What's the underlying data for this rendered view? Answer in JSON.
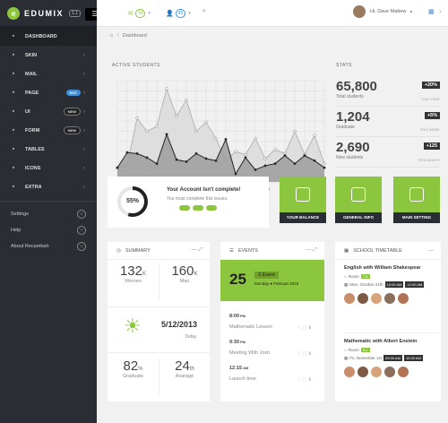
{
  "brand": {
    "name": "EDUMIX",
    "version": "1.1",
    "accent": "#8cc63f",
    "dark": "#2a2d33"
  },
  "sidebar": {
    "items": [
      {
        "label": "DASHBOARD",
        "icon": "monitor-icon",
        "badge": null
      },
      {
        "label": "SKIN",
        "icon": "eye-icon",
        "badge": null
      },
      {
        "label": "MAIL",
        "icon": "mail-icon",
        "badge": null
      },
      {
        "label": "PAGE",
        "icon": "file-icon",
        "badge": "HOT"
      },
      {
        "label": "UI",
        "icon": "code-icon",
        "badge": "NEW"
      },
      {
        "label": "FORM",
        "icon": "pencil-icon",
        "badge": "NEW"
      },
      {
        "label": "TABLES",
        "icon": "table-icon",
        "badge": null
      },
      {
        "label": "ICONS",
        "icon": "grid-icon",
        "badge": null
      },
      {
        "label": "EXTRA",
        "icon": "rocket-icon",
        "badge": null
      }
    ],
    "utility": [
      {
        "label": "Settings",
        "icon": "settings-icon"
      },
      {
        "label": "Help",
        "icon": "help-icon"
      },
      {
        "label": "About Recambah",
        "icon": "music-icon"
      }
    ]
  },
  "topbar": {
    "messages_count": "14",
    "users_count": "45",
    "user_name": "Hi, Dave Mattew"
  },
  "breadcrumb": "Dashboard",
  "chart_title": "ACTIVE STUDENTS",
  "chart_data": {
    "type": "area",
    "x_ticks": [
      "2.5",
      "5.0",
      "7.5",
      "10.0",
      "12.5",
      "15.0",
      "17.5",
      "20.0"
    ],
    "xlim": [
      0,
      21
    ],
    "ylim": [
      0,
      100
    ],
    "grid": true,
    "series": [
      {
        "values": [
          [
            0,
            14
          ],
          [
            1,
            17
          ],
          [
            2,
            63
          ],
          [
            3,
            50
          ],
          [
            4,
            55
          ],
          [
            5,
            92
          ],
          [
            6,
            65
          ],
          [
            7,
            81
          ],
          [
            8,
            50
          ],
          [
            9,
            59
          ],
          [
            10,
            43
          ],
          [
            11,
            21
          ],
          [
            12,
            30
          ],
          [
            13,
            27
          ],
          [
            14,
            43
          ],
          [
            15,
            23
          ],
          [
            16,
            32
          ],
          [
            17,
            28
          ],
          [
            18,
            50
          ],
          [
            19,
            27
          ],
          [
            20,
            46
          ],
          [
            21,
            18
          ]
        ],
        "color": "#dcdcdc"
      },
      {
        "values": [
          [
            0,
            14
          ],
          [
            1,
            29
          ],
          [
            2,
            28
          ],
          [
            3,
            24
          ],
          [
            4,
            18
          ],
          [
            5,
            47
          ],
          [
            6,
            22
          ],
          [
            7,
            20
          ],
          [
            8,
            28
          ],
          [
            9,
            23
          ],
          [
            10,
            21
          ],
          [
            11,
            42
          ],
          [
            12,
            8
          ],
          [
            13,
            24
          ],
          [
            14,
            12
          ],
          [
            15,
            16
          ],
          [
            16,
            18
          ],
          [
            17,
            26
          ],
          [
            18,
            18
          ],
          [
            19,
            26
          ],
          [
            20,
            21
          ],
          [
            21,
            14
          ]
        ],
        "color": "#9e9e9e"
      }
    ]
  },
  "stats": {
    "heading": "STATS",
    "rows": [
      {
        "value": "65,800",
        "label": "Total students",
        "change": "+20%",
        "period": "THIS YEAR"
      },
      {
        "value": "1,204",
        "label": "Graduate",
        "change": "+5%",
        "period": "THIS WEEK"
      },
      {
        "value": "2,690",
        "label": "New students",
        "change": "+125",
        "period": "THIS MONTH"
      }
    ]
  },
  "account": {
    "percent": "55%",
    "progress": 0.55,
    "title": "Your Account Isn't complete!",
    "subtitle": "You must complete this issues."
  },
  "tiles": [
    {
      "label": "YOUR BALANCE",
      "icon": "wallet-icon"
    },
    {
      "label": "GENERAL INFO",
      "icon": "document-icon"
    },
    {
      "label": "MAIN SETTING",
      "icon": "sliders-icon"
    }
  ],
  "summary": {
    "title": "SUMMARY",
    "women": {
      "value": "132",
      "unit": "K",
      "label": "Women"
    },
    "men": {
      "value": "160",
      "unit": "K",
      "label": "Man"
    },
    "date": "5/12/2013",
    "today": "Today",
    "graduate": {
      "value": "82",
      "unit": "%",
      "label": "Graduate"
    },
    "average": {
      "value": "24",
      "unit": "th",
      "label": "Avarage"
    }
  },
  "events": {
    "title": "EVENTS",
    "day": "25",
    "count": "3 Event",
    "date": "Monday ● Februari 2015",
    "list": [
      {
        "time": "8:00",
        "suffix": "PM",
        "title": "Mathematic Lesson"
      },
      {
        "time": "9:30",
        "suffix": "PM",
        "title": "Meeting With Josh"
      },
      {
        "time": "12:15",
        "suffix": "AM",
        "title": "Launch time"
      }
    ]
  },
  "timetable": {
    "title": "SCHOOL TIMETABLE",
    "classes": [
      {
        "title": "English with William Shakespear",
        "room_label": "Room",
        "room": "7-8",
        "day": "Mon, October 21th",
        "start": "10:00 AM",
        "end": "12:00 AM"
      },
      {
        "title": "Mathematic with Albert Enstein",
        "room_label": "Room",
        "room": "5-2",
        "day": "Fri, November 1st",
        "start": "09:00 AM",
        "end": "10:00 AM"
      }
    ]
  }
}
